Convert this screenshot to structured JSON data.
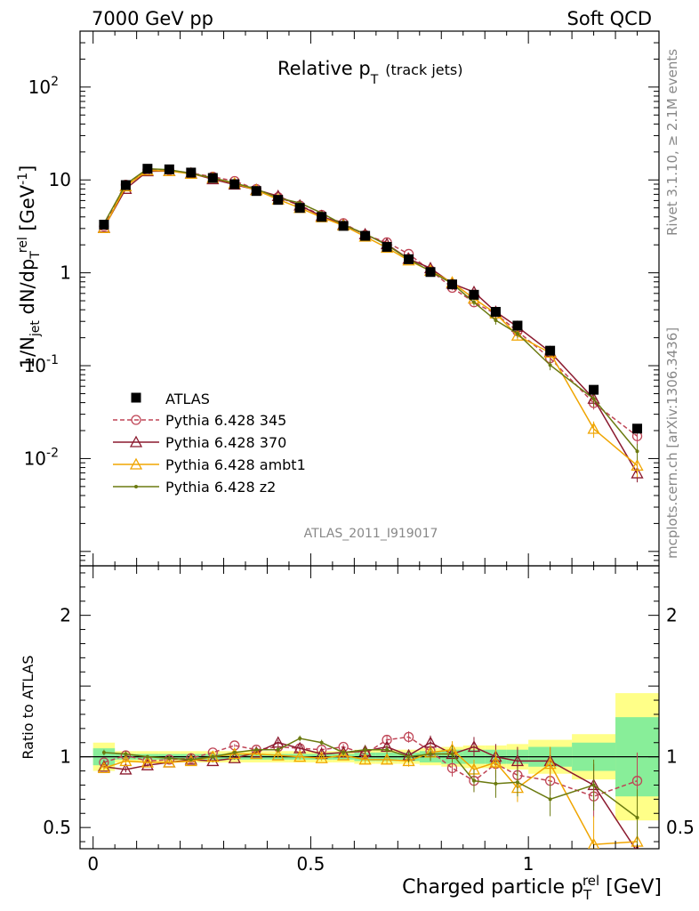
{
  "header": {
    "left": "7000 GeV pp",
    "right": "Soft QCD"
  },
  "side_labels": {
    "rivet": "Rivet 3.1.10, ≥ 2.1M events",
    "mcplots": "mcplots.cern.ch [arXiv:1306.3436]"
  },
  "chart_data": {
    "type": "line",
    "title_main": "Relative p",
    "title_sub": "T",
    "title_note": "(track jets)",
    "analysis_id": "ATLAS_2011_I919017",
    "ylabel": "1/N_jet dN/dp_T^rel [GeV^-1]",
    "xlabel": "Charged particle p_T^rel [GeV]",
    "ratio_ylabel": "Ratio to ATLAS",
    "x": [
      0.025,
      0.075,
      0.125,
      0.175,
      0.225,
      0.275,
      0.325,
      0.375,
      0.425,
      0.475,
      0.525,
      0.575,
      0.625,
      0.675,
      0.725,
      0.775,
      0.825,
      0.875,
      0.925,
      0.975,
      1.05,
      1.15,
      1.25
    ],
    "x_edges": [
      0,
      0.05,
      0.1,
      0.15,
      0.2,
      0.25,
      0.3,
      0.35,
      0.4,
      0.45,
      0.5,
      0.55,
      0.6,
      0.65,
      0.7,
      0.75,
      0.8,
      0.85,
      0.9,
      0.95,
      1.0,
      1.1,
      1.2,
      1.3
    ],
    "xlim": [
      -0.03,
      1.3
    ],
    "ylim": [
      0.0007,
      400
    ],
    "ratio_ylim": [
      0.35,
      2.35
    ],
    "yscale": "log",
    "x_ticks": [
      "0",
      "0.5",
      "1"
    ],
    "y_ticks": [
      "10^-2",
      "10^-1",
      "1",
      "10",
      "10^2"
    ],
    "ratio_ticks": [
      "0.5",
      "1",
      "2"
    ],
    "legend_position": "bottom-left",
    "data": {
      "name": "ATLAS",
      "values": [
        3.3,
        8.8,
        13.2,
        13.0,
        12.0,
        10.5,
        9.0,
        7.6,
        6.1,
        5.0,
        4.0,
        3.2,
        2.5,
        1.9,
        1.4,
        1.02,
        0.75,
        0.58,
        0.38,
        0.27,
        0.145,
        0.055,
        0.021
      ]
    },
    "band_outer": [
      0.1,
      0.04,
      0.04,
      0.04,
      0.04,
      0.04,
      0.04,
      0.04,
      0.04,
      0.04,
      0.04,
      0.04,
      0.05,
      0.05,
      0.05,
      0.06,
      0.07,
      0.08,
      0.08,
      0.09,
      0.12,
      0.16,
      0.45
    ],
    "band_inner": [
      0.06,
      0.02,
      0.02,
      0.02,
      0.02,
      0.02,
      0.02,
      0.02,
      0.02,
      0.02,
      0.02,
      0.02,
      0.03,
      0.03,
      0.03,
      0.04,
      0.05,
      0.05,
      0.05,
      0.05,
      0.07,
      0.1,
      0.28
    ],
    "series": [
      {
        "name": "Pythia 6.428 345",
        "color": "#bf4556",
        "dash": true,
        "marker": "circle",
        "ratio": [
          0.96,
          1.01,
          0.97,
          0.98,
          0.99,
          1.03,
          1.08,
          1.05,
          1.07,
          1.06,
          1.05,
          1.07,
          1.02,
          1.12,
          1.14,
          1.04,
          0.92,
          0.83,
          0.95,
          0.87,
          0.83,
          0.72,
          0.83
        ],
        "rerr": [
          0.02,
          0.02,
          0.01,
          0.01,
          0.01,
          0.01,
          0.01,
          0.01,
          0.02,
          0.02,
          0.02,
          0.02,
          0.03,
          0.03,
          0.04,
          0.05,
          0.06,
          0.08,
          0.1,
          0.1,
          0.1,
          0.15,
          0.2
        ]
      },
      {
        "name": "Pythia 6.428 370",
        "color": "#8b1a2f",
        "dash": false,
        "marker": "triangle",
        "ratio": [
          0.93,
          0.91,
          0.94,
          0.96,
          0.98,
          0.97,
          0.99,
          1.03,
          1.1,
          1.06,
          1.02,
          1.03,
          1.04,
          1.07,
          1.01,
          1.1,
          1.02,
          1.07,
          1.0,
          0.97,
          0.97,
          0.8,
          0.33
        ],
        "rerr": [
          0.02,
          0.02,
          0.01,
          0.01,
          0.01,
          0.01,
          0.01,
          0.01,
          0.02,
          0.02,
          0.02,
          0.02,
          0.03,
          0.03,
          0.04,
          0.05,
          0.06,
          0.07,
          0.09,
          0.1,
          0.1,
          0.15,
          0.2
        ]
      },
      {
        "name": "Pythia 6.428 ambt1",
        "color": "#f0a500",
        "dash": false,
        "marker": "triangle",
        "ratio": [
          0.92,
          0.97,
          0.96,
          0.96,
          0.97,
          1.0,
          1.02,
          1.02,
          1.01,
          1.0,
          0.99,
          1.01,
          0.98,
          0.98,
          0.97,
          1.03,
          1.05,
          0.91,
          0.96,
          0.78,
          0.95,
          0.38,
          0.4
        ],
        "rerr": [
          0.02,
          0.02,
          0.01,
          0.01,
          0.01,
          0.01,
          0.01,
          0.01,
          0.02,
          0.02,
          0.02,
          0.02,
          0.03,
          0.03,
          0.04,
          0.05,
          0.06,
          0.07,
          0.09,
          0.1,
          0.12,
          0.2,
          0.25
        ]
      },
      {
        "name": "Pythia 6.428 z2",
        "color": "#6b7a10",
        "dash": false,
        "marker": "dot",
        "ratio": [
          1.03,
          1.02,
          1.0,
          0.99,
          0.98,
          1.0,
          1.03,
          1.05,
          1.05,
          1.13,
          1.1,
          1.03,
          1.05,
          1.05,
          1.0,
          1.02,
          1.02,
          0.83,
          0.81,
          0.82,
          0.7,
          0.8,
          0.57
        ],
        "rerr": [
          0.02,
          0.02,
          0.01,
          0.01,
          0.01,
          0.01,
          0.01,
          0.01,
          0.02,
          0.02,
          0.02,
          0.02,
          0.03,
          0.03,
          0.04,
          0.05,
          0.06,
          0.08,
          0.1,
          0.1,
          0.12,
          0.18,
          0.2
        ]
      }
    ]
  }
}
